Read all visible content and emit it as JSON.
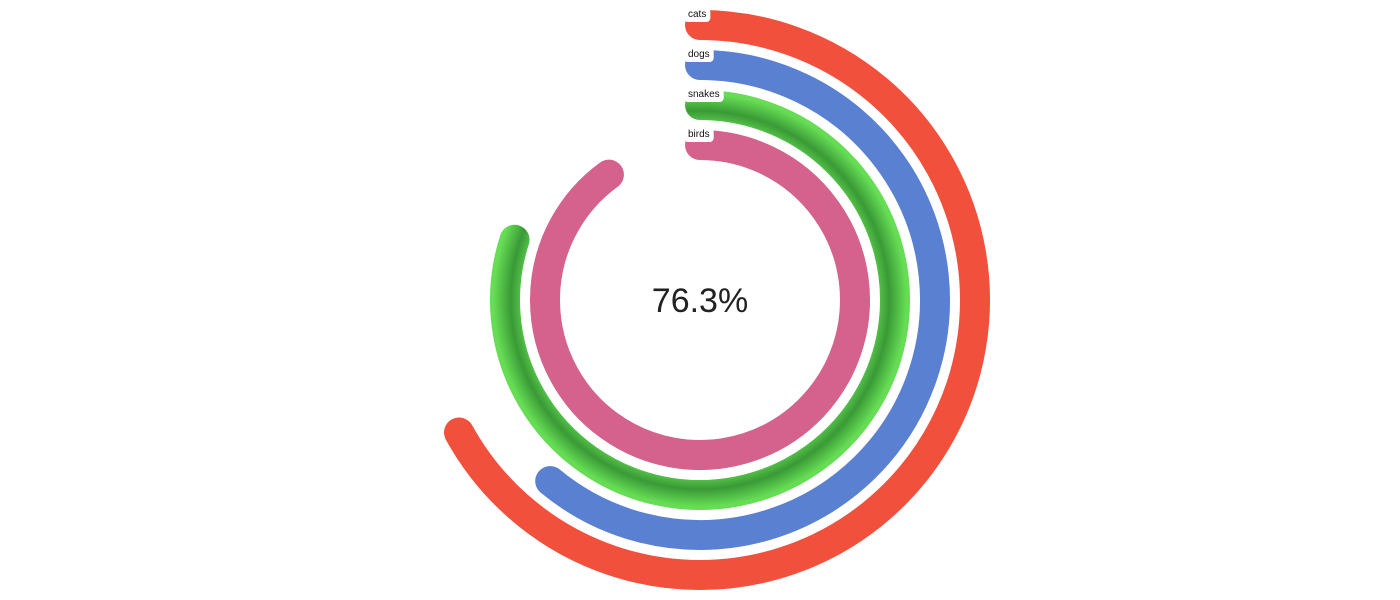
{
  "chart_data": {
    "type": "radial-bar",
    "center_label": "76.3%",
    "series": [
      {
        "name": "cats",
        "value": 67,
        "color": "#f0503c"
      },
      {
        "name": "dogs",
        "value": 61,
        "color": "#5a80d2"
      },
      {
        "name": "snakes",
        "value": 80,
        "color": "#55d04c"
      },
      {
        "name": "birds",
        "value": 90,
        "color": "#d4628c"
      }
    ],
    "max_value": 100,
    "start_angle_deg": 0,
    "rounded_caps": true
  }
}
